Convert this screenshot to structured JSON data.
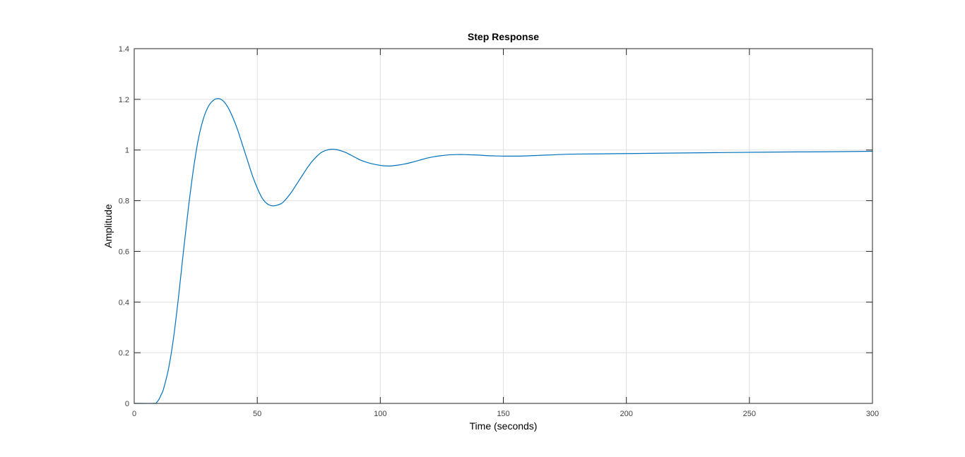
{
  "chart_data": {
    "type": "line",
    "title": "Step Response",
    "xlabel": "Time (seconds)",
    "ylabel": "Amplitude",
    "xlim": [
      0,
      300
    ],
    "ylim": [
      0,
      1.4
    ],
    "xticks": [
      0,
      50,
      100,
      150,
      200,
      250,
      300
    ],
    "yticks": [
      0,
      0.2,
      0.4,
      0.6,
      0.8,
      1,
      1.2,
      1.4
    ],
    "xtick_labels": [
      "0",
      "50",
      "100",
      "150",
      "200",
      "250",
      "300"
    ],
    "ytick_labels": [
      "0",
      "0.2",
      "0.4",
      "0.6",
      "0.8",
      "1",
      "1.2",
      "1.4"
    ],
    "grid": true,
    "series": [
      {
        "color": "#0072BD",
        "x": [
          0,
          8,
          9,
          10,
          11,
          12,
          14,
          16,
          18,
          20,
          22,
          24,
          26,
          28,
          30,
          32,
          34,
          36,
          38,
          40,
          42,
          44,
          46,
          48,
          50,
          52,
          54,
          56,
          58,
          60,
          62,
          64,
          66,
          68,
          70,
          72,
          74,
          76,
          78,
          80,
          82,
          84,
          86,
          88,
          90,
          92,
          95,
          98,
          101,
          104,
          107,
          110,
          113,
          116,
          119,
          122,
          125,
          128,
          131,
          134,
          137,
          140,
          143,
          146,
          150,
          155,
          160,
          165,
          170,
          175,
          180,
          190,
          200,
          220,
          240,
          260,
          280,
          300
        ],
        "y": [
          0,
          0,
          0.003,
          0.015,
          0.035,
          0.06,
          0.14,
          0.26,
          0.42,
          0.6,
          0.77,
          0.92,
          1.04,
          1.12,
          1.17,
          1.195,
          1.203,
          1.195,
          1.17,
          1.13,
          1.08,
          1.02,
          0.96,
          0.9,
          0.85,
          0.81,
          0.788,
          0.78,
          0.782,
          0.79,
          0.81,
          0.835,
          0.865,
          0.895,
          0.925,
          0.952,
          0.973,
          0.99,
          0.999,
          1.003,
          1.002,
          0.997,
          0.99,
          0.98,
          0.97,
          0.96,
          0.95,
          0.943,
          0.938,
          0.937,
          0.94,
          0.945,
          0.952,
          0.96,
          0.968,
          0.974,
          0.978,
          0.981,
          0.982,
          0.982,
          0.981,
          0.98,
          0.978,
          0.977,
          0.976,
          0.976,
          0.977,
          0.979,
          0.981,
          0.983,
          0.984,
          0.985,
          0.986,
          0.988,
          0.99,
          0.992,
          0.993,
          0.995
        ]
      }
    ]
  }
}
